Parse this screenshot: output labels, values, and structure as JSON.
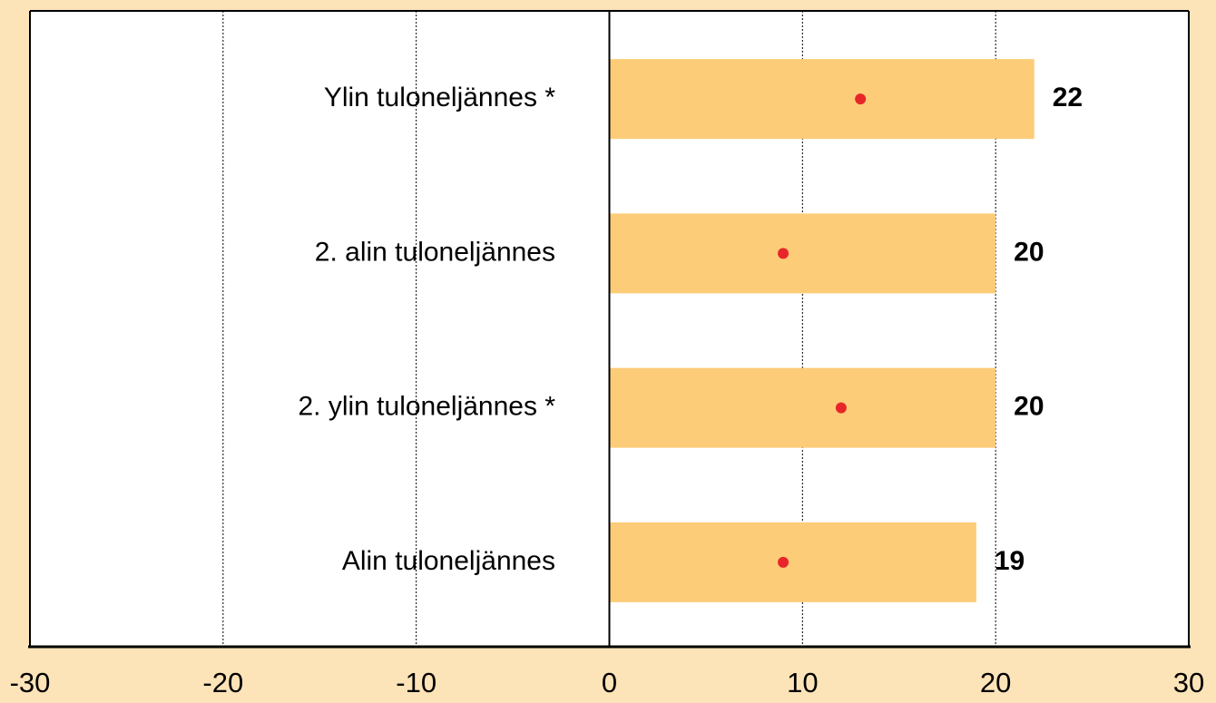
{
  "chart_data": {
    "type": "bar",
    "orientation": "horizontal",
    "categories": [
      "Ylin tuloneljännes *",
      "2. alin tuloneljännes",
      "2. ylin tuloneljännes *",
      "Alin tuloneljännes"
    ],
    "series": [
      {
        "color": "#fdcc78",
        "values": [
          22,
          20,
          20,
          19
        ]
      },
      {
        "color": "#e8262a",
        "marker": "dot",
        "values": [
          13,
          9,
          12,
          9
        ]
      }
    ],
    "xlim": [
      -30,
      30
    ],
    "xticks": [
      -30,
      -20,
      -10,
      0,
      10,
      20,
      30
    ],
    "grid": true
  }
}
